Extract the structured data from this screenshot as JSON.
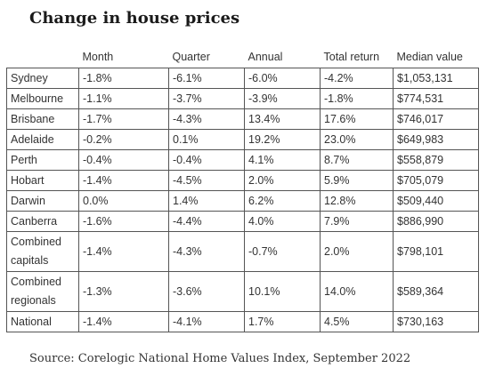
{
  "title": "Change in house prices",
  "table": {
    "headers": [
      "",
      "Month",
      "Quarter",
      "Annual",
      "Total return",
      "Median value"
    ],
    "rows": [
      [
        "Sydney",
        "-1.8%",
        "-6.1%",
        "-6.0%",
        "-4.2%",
        "$1,053,131"
      ],
      [
        "Melbourne",
        "-1.1%",
        "-3.7%",
        "-3.9%",
        "-1.8%",
        "$774,531"
      ],
      [
        "Brisbane",
        "-1.7%",
        "-4.3%",
        "13.4%",
        "17.6%",
        "$746,017"
      ],
      [
        "Adelaide",
        "-0.2%",
        "0.1%",
        "19.2%",
        "23.0%",
        "$649,983"
      ],
      [
        "Perth",
        "-0.4%",
        "-0.4%",
        "4.1%",
        "8.7%",
        "$558,879"
      ],
      [
        "Hobart",
        "-1.4%",
        "-4.5%",
        "2.0%",
        "5.9%",
        "$705,079"
      ],
      [
        "Darwin",
        "0.0%",
        "1.4%",
        "6.2%",
        "12.8%",
        "$509,440"
      ],
      [
        "Canberra",
        "-1.6%",
        "-4.4%",
        "4.0%",
        "7.9%",
        "$886,990"
      ],
      [
        "Combined capitals",
        "-1.4%",
        "-4.3%",
        "-0.7%",
        "2.0%",
        "$798,101"
      ],
      [
        "Combined regionals",
        "-1.3%",
        "-3.6%",
        "10.1%",
        "14.0%",
        "$589,364"
      ],
      [
        "National",
        "-1.4%",
        "-4.1%",
        "1.7%",
        "4.5%",
        "$730,163"
      ]
    ]
  },
  "source": "Source: Corelogic National Home Values Index, September 2022"
}
